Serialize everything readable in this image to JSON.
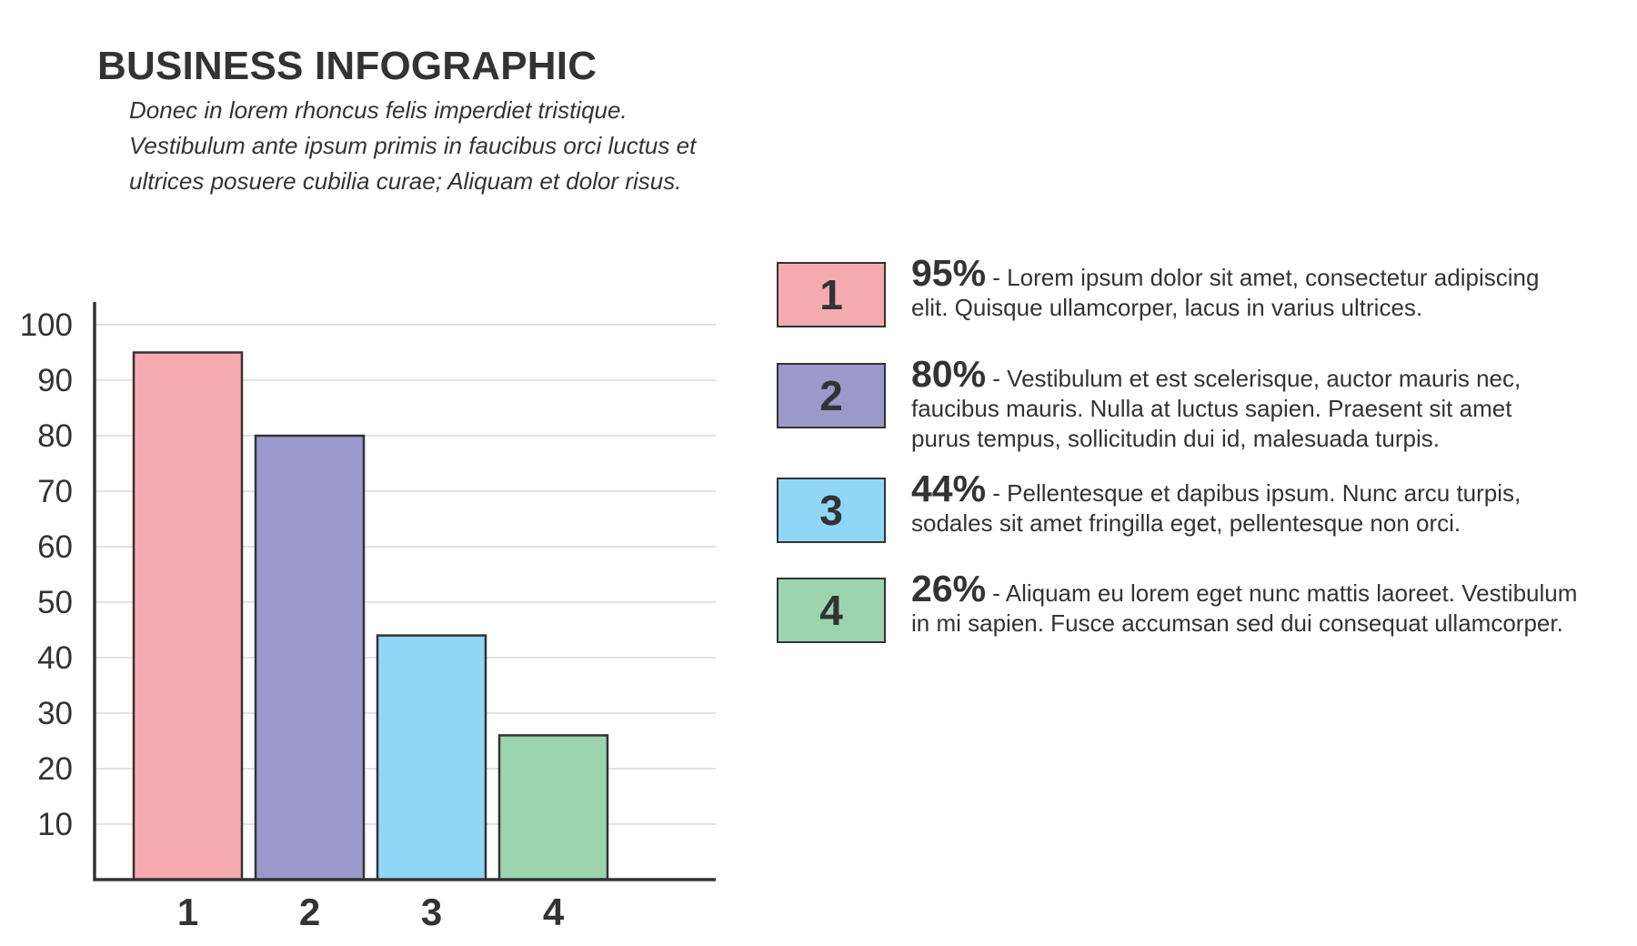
{
  "header": {
    "title": "BUSINESS INFOGRAPHIC",
    "subtitle_lines": [
      "Donec in lorem rhoncus felis imperdiet tristique.",
      "Vestibulum ante ipsum primis in faucibus orci luctus et",
      "ultrices posuere cubilia curae; Aliquam et dolor risus."
    ]
  },
  "chart_data": {
    "type": "bar",
    "categories": [
      "1",
      "2",
      "3",
      "4"
    ],
    "values": [
      95,
      80,
      44,
      26
    ],
    "colors": [
      "#f5aab0",
      "#9b99cc",
      "#90d6f6",
      "#9dd4b0"
    ],
    "yticks": [
      10,
      20,
      30,
      40,
      50,
      60,
      70,
      80,
      90,
      100
    ],
    "ylim": [
      0,
      100
    ],
    "xlabel": "",
    "ylabel": "",
    "grid": true,
    "axis_color": "#333333",
    "grid_color": "#d9d9d9"
  },
  "legend": {
    "items": [
      {
        "number": "1",
        "percent": "95%",
        "color": "#f5aab0",
        "lines": [
          " - Lorem ipsum dolor sit amet, consectetur adipiscing",
          "elit. Quisque ullamcorper, lacus in varius ultrices."
        ]
      },
      {
        "number": "2",
        "percent": "80%",
        "color": "#9b99cc",
        "lines": [
          " - Vestibulum et est scelerisque, auctor mauris nec,",
          "faucibus mauris. Nulla at luctus sapien. Praesent sit amet",
          "purus tempus, sollicitudin dui id, malesuada turpis."
        ]
      },
      {
        "number": "3",
        "percent": "44%",
        "color": "#90d6f6",
        "lines": [
          " - Pellentesque et dapibus ipsum. Nunc arcu turpis,",
          "sodales sit amet fringilla eget, pellentesque non orci."
        ]
      },
      {
        "number": "4",
        "percent": "26%",
        "color": "#9dd4b0",
        "lines": [
          " - Aliquam eu lorem eget nunc mattis laoreet. Vestibulum",
          "in mi sapien. Fusce accumsan sed dui consequat ullamcorper."
        ]
      }
    ]
  }
}
